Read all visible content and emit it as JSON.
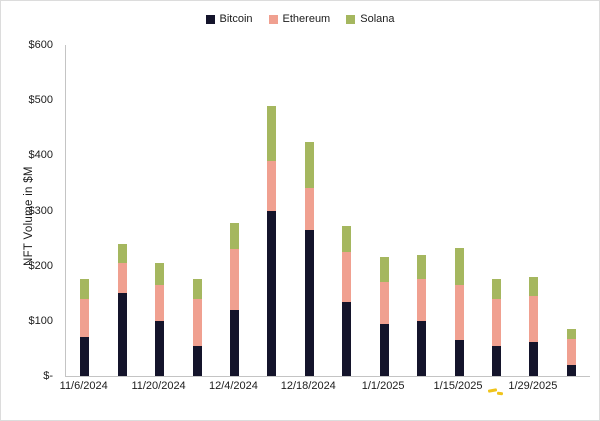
{
  "legend": [
    {
      "label": "Bitcoin",
      "color": "#14142b"
    },
    {
      "label": "Ethereum",
      "color": "#f0a090"
    },
    {
      "label": "Solana",
      "color": "#a5b75f"
    }
  ],
  "y_axis": {
    "title": "NFT Volume in $M",
    "ticks": [
      "$600",
      "$500",
      "$400",
      "$300",
      "$200",
      "$100",
      "$-"
    ]
  },
  "chart_data": {
    "type": "bar",
    "stacked": true,
    "title": "",
    "xlabel": "",
    "ylabel": "NFT Volume in $M",
    "ylim": [
      0,
      600
    ],
    "grid": false,
    "legend_position": "top",
    "categories": [
      "11/6/2024",
      "",
      "11/20/2024",
      "",
      "12/4/2024",
      "",
      "12/18/2024",
      "",
      "1/1/2025",
      "",
      "1/15/2025",
      "",
      "1/29/2025",
      ""
    ],
    "series": [
      {
        "name": "Bitcoin",
        "color": "#14142b",
        "values": [
          70,
          150,
          100,
          55,
          120,
          300,
          265,
          135,
          95,
          100,
          65,
          55,
          62,
          20
        ]
      },
      {
        "name": "Ethereum",
        "color": "#f0a090",
        "values": [
          70,
          55,
          65,
          85,
          110,
          90,
          75,
          90,
          75,
          75,
          100,
          85,
          83,
          48
        ]
      },
      {
        "name": "Solana",
        "color": "#a5b75f",
        "values": [
          35,
          35,
          40,
          35,
          48,
          100,
          85,
          47,
          45,
          45,
          67,
          35,
          35,
          17
        ]
      }
    ]
  }
}
